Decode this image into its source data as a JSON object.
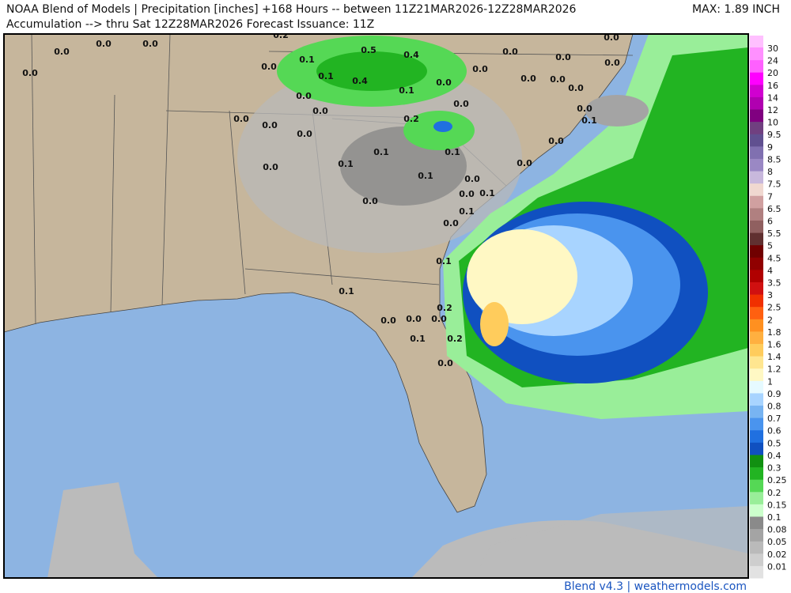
{
  "header": {
    "title": "NOAA Blend of Models | Precipitation [inches] +168 Hours -- between 11Z21MAR2026-12Z28MAR2026",
    "subtitle": "Accumulation --> thru Sat 12Z28MAR2026   Forecast Issuance: 11Z",
    "max": "MAX: 1.89 INCH"
  },
  "map": {
    "labels": [
      "0.2",
      "0.0",
      "0.0",
      "0.0",
      "0.5",
      "0.4",
      "0.0",
      "0.0",
      "0.0",
      "0.0",
      "0.0",
      "0.1",
      "0.0",
      "0.1",
      "0.4",
      "0.0",
      "0.0",
      "0.0",
      "0.0",
      "0.0",
      "0.1",
      "0.0",
      "0.0",
      "0.0",
      "0.0",
      "0.0",
      "0.0",
      "0.2",
      "0.1",
      "0.0",
      "0.0",
      "0.1",
      "0.1",
      "0.0",
      "0.1",
      "0.0",
      "0.1",
      "0.0",
      "0.0",
      "0.1",
      "0.0",
      "0.1",
      "0.0",
      "0.1",
      "0.1",
      "0.2",
      "0.0",
      "0.0",
      "0.0",
      "0.1",
      "0.2",
      "0.0"
    ]
  },
  "legend": {
    "levels": [
      {
        "label": "0.01",
        "color": "#e2e2e2"
      },
      {
        "label": "0.02",
        "color": "#cecece"
      },
      {
        "label": "0.05",
        "color": "#bababa"
      },
      {
        "label": "0.08",
        "color": "#a4a4a4"
      },
      {
        "label": "0.1",
        "color": "#8a8a8a"
      },
      {
        "label": "0.15",
        "color": "#ccffcc"
      },
      {
        "label": "0.2",
        "color": "#99ee99"
      },
      {
        "label": "0.25",
        "color": "#55d855"
      },
      {
        "label": "0.3",
        "color": "#22b422"
      },
      {
        "label": "0.4",
        "color": "#119011"
      },
      {
        "label": "0.5",
        "color": "#1050c0"
      },
      {
        "label": "0.6",
        "color": "#2070e0"
      },
      {
        "label": "0.7",
        "color": "#4a94ee"
      },
      {
        "label": "0.8",
        "color": "#78b4f2"
      },
      {
        "label": "0.9",
        "color": "#a8d4ff"
      },
      {
        "label": "1",
        "color": "#e6faff"
      },
      {
        "label": "1.2",
        "color": "#fff8c4"
      },
      {
        "label": "1.4",
        "color": "#ffe690"
      },
      {
        "label": "1.6",
        "color": "#ffcc5c"
      },
      {
        "label": "1.8",
        "color": "#ffb040"
      },
      {
        "label": "2",
        "color": "#ff9020"
      },
      {
        "label": "2.5",
        "color": "#ff6010"
      },
      {
        "label": "3",
        "color": "#f03000"
      },
      {
        "label": "3.5",
        "color": "#d01010"
      },
      {
        "label": "4",
        "color": "#b00000"
      },
      {
        "label": "4.5",
        "color": "#900000"
      },
      {
        "label": "5",
        "color": "#700000"
      },
      {
        "label": "5.5",
        "color": "#603030"
      },
      {
        "label": "6",
        "color": "#906060"
      },
      {
        "label": "6.5",
        "color": "#b08080"
      },
      {
        "label": "7",
        "color": "#d0a0a0"
      },
      {
        "label": "7.5",
        "color": "#f0d8d0"
      },
      {
        "label": "8",
        "color": "#c8b8dc"
      },
      {
        "label": "8.5",
        "color": "#9a88c4"
      },
      {
        "label": "9",
        "color": "#8070b0"
      },
      {
        "label": "9.5",
        "color": "#605090"
      },
      {
        "label": "10",
        "color": "#704080"
      },
      {
        "label": "12",
        "color": "#800080"
      },
      {
        "label": "14",
        "color": "#b000b0"
      },
      {
        "label": "16",
        "color": "#d000d0"
      },
      {
        "label": "20",
        "color": "#ff00ff"
      },
      {
        "label": "24",
        "color": "#ff60ff"
      },
      {
        "label": "30",
        "color": "#ff90ff"
      }
    ]
  },
  "footer": {
    "credit": "Blend v4.3 | weathermodels.com"
  }
}
